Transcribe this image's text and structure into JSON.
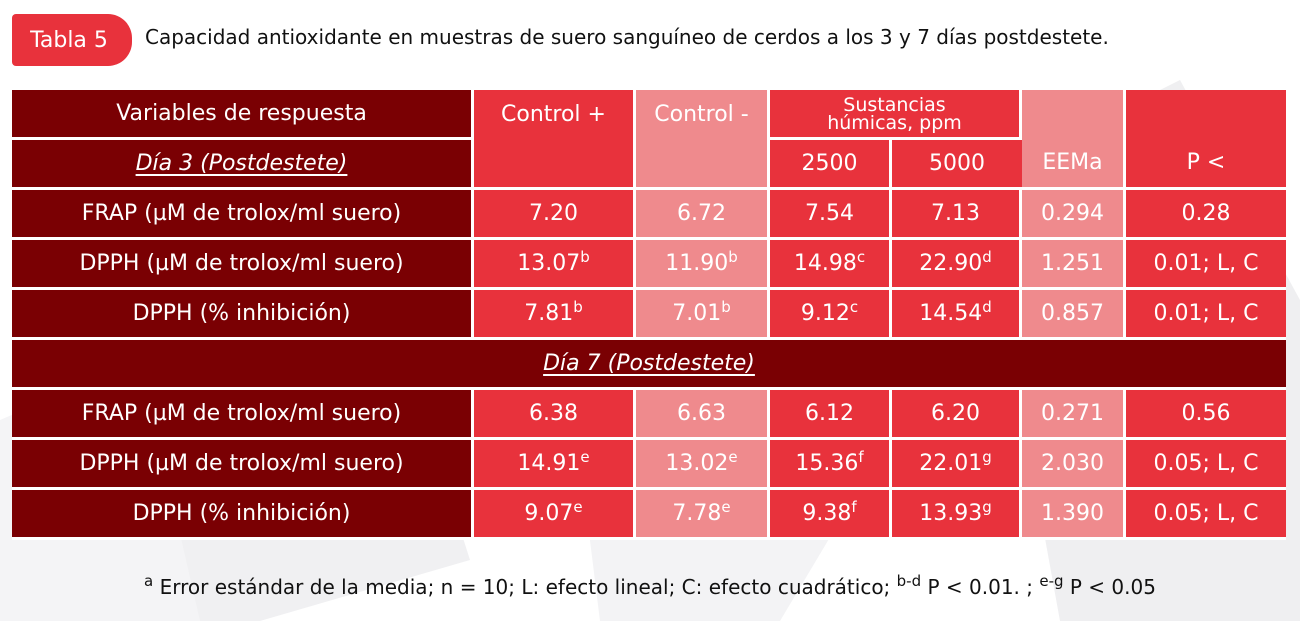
{
  "caption": {
    "tag": "Tabla 5",
    "text": "Capacidad antioxidante en muestras de suero sanguíneo de cerdos a los 3 y 7 días postdestete."
  },
  "table": {
    "headers": {
      "variables": "Variables de respuesta",
      "control_pos": "Control +",
      "control_neg": "Control -",
      "humic_line1": "Sustancias",
      "humic_line2": "húmicas, ppm",
      "dose_2500": "2500",
      "dose_5000": "5000",
      "eema": "EEMa",
      "p": "P <"
    },
    "day3_label": "Día 3 (Postdestete)",
    "day7_label": "Día 7 (Postdestete)",
    "day3_rows": [
      {
        "label": "FRAP (µM de trolox/ml suero)",
        "c_pos": "7.20",
        "c_pos_sup": "",
        "c_neg": "6.72",
        "c_neg_sup": "",
        "h2500": "7.54",
        "h2500_sup": "",
        "h5000": "7.13",
        "h5000_sup": "",
        "eem": "0.294",
        "p": "0.28"
      },
      {
        "label": "DPPH (µM de trolox/ml suero)",
        "c_pos": "13.07",
        "c_pos_sup": "b",
        "c_neg": "11.90",
        "c_neg_sup": "b",
        "h2500": "14.98",
        "h2500_sup": "c",
        "h5000": "22.90",
        "h5000_sup": "d",
        "eem": "1.251",
        "p": "0.01; L, C"
      },
      {
        "label": "DPPH (% inhibición)",
        "c_pos": "7.81",
        "c_pos_sup": "b",
        "c_neg": "7.01",
        "c_neg_sup": "b",
        "h2500": "9.12",
        "h2500_sup": "c",
        "h5000": "14.54",
        "h5000_sup": "d",
        "eem": "0.857",
        "p": "0.01; L, C"
      }
    ],
    "day7_rows": [
      {
        "label": "FRAP (µM de trolox/ml suero)",
        "c_pos": "6.38",
        "c_pos_sup": "",
        "c_neg": "6.63",
        "c_neg_sup": "",
        "h2500": "6.12",
        "h2500_sup": "",
        "h5000": "6.20",
        "h5000_sup": "",
        "eem": "0.271",
        "p": "0.56"
      },
      {
        "label": "DPPH (µM de trolox/ml suero)",
        "c_pos": "14.91",
        "c_pos_sup": "e",
        "c_neg": "13.02",
        "c_neg_sup": "e",
        "h2500": "15.36",
        "h2500_sup": "f",
        "h5000": "22.01",
        "h5000_sup": "g",
        "eem": "2.030",
        "p": "0.05; L, C"
      },
      {
        "label": "DPPH (% inhibición)",
        "c_pos": "9.07",
        "c_pos_sup": "e",
        "c_neg": "7.78",
        "c_neg_sup": "e",
        "h2500": "9.38",
        "h2500_sup": "f",
        "h5000": "13.93",
        "h5000_sup": "g",
        "eem": "1.390",
        "p": "0.05; L, C"
      }
    ]
  },
  "footnote": {
    "a_sup": "a",
    "part1": " Error estándar de la media; n = 10; L: efecto lineal; C: efecto cuadrático; ",
    "bd_sup": "b-d",
    "part2": " P < 0.01. ; ",
    "eg_sup": "e-g",
    "part3": " P < 0.05"
  },
  "colors": {
    "label_dark": "#7a0003",
    "red": "#e8323c",
    "pink": "#ef8a8d"
  }
}
